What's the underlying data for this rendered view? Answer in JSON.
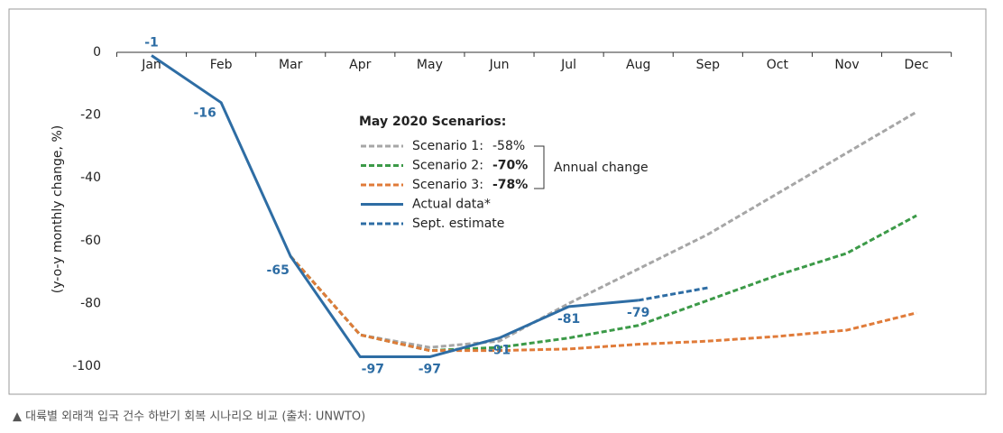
{
  "chart_data": {
    "type": "line",
    "y_label": "(y-o-y monthly change, %)",
    "categories": [
      "Jan",
      "Feb",
      "Mar",
      "Apr",
      "May",
      "Jun",
      "Jul",
      "Aug",
      "Sep",
      "Oct",
      "Nov",
      "Dec"
    ],
    "ylim": [
      -100,
      0
    ],
    "yticks": [
      0,
      -20,
      -40,
      -60,
      -80,
      -100
    ],
    "legend_title": "May 2020 Scenarios:",
    "annual_change_label": "Annual change",
    "series": [
      {
        "name": "Scenario 1:",
        "annual_change": "-58%",
        "color": "#a6a6a6",
        "dashed": true,
        "values": [
          null,
          null,
          -65,
          -90,
          -94,
          -92,
          -80,
          -69,
          -58,
          -45,
          -32,
          -19
        ]
      },
      {
        "name": "Scenario 2:",
        "annual_change": "-70%",
        "color": "#3c9a48",
        "dashed": true,
        "values": [
          null,
          null,
          -65,
          -90,
          -95,
          -94,
          -91,
          -87,
          -79,
          -71,
          -64,
          -52
        ]
      },
      {
        "name": "Scenario 3:",
        "annual_change": "-78%",
        "color": "#e07b39",
        "dashed": true,
        "values": [
          null,
          null,
          -65,
          -90,
          -95,
          -95,
          -94.5,
          -93,
          -92,
          -90.5,
          -88.5,
          -83
        ]
      },
      {
        "name": "Actual data*",
        "color": "#2e6da4",
        "dashed": false,
        "data_labels": true,
        "values": [
          -1,
          -16,
          -65,
          -97,
          -97,
          -91,
          -81,
          -79,
          null,
          null,
          null,
          null
        ]
      },
      {
        "name": "Sept. estimate",
        "color": "#2e6da4",
        "dashed": true,
        "values": [
          null,
          null,
          null,
          null,
          null,
          null,
          null,
          -79,
          -75,
          null,
          null,
          null
        ]
      }
    ]
  },
  "caption": "▲ 대륙별 외래객 입국 건수 하반기 회복 시나리오 비교 (출처: UNWTO)"
}
